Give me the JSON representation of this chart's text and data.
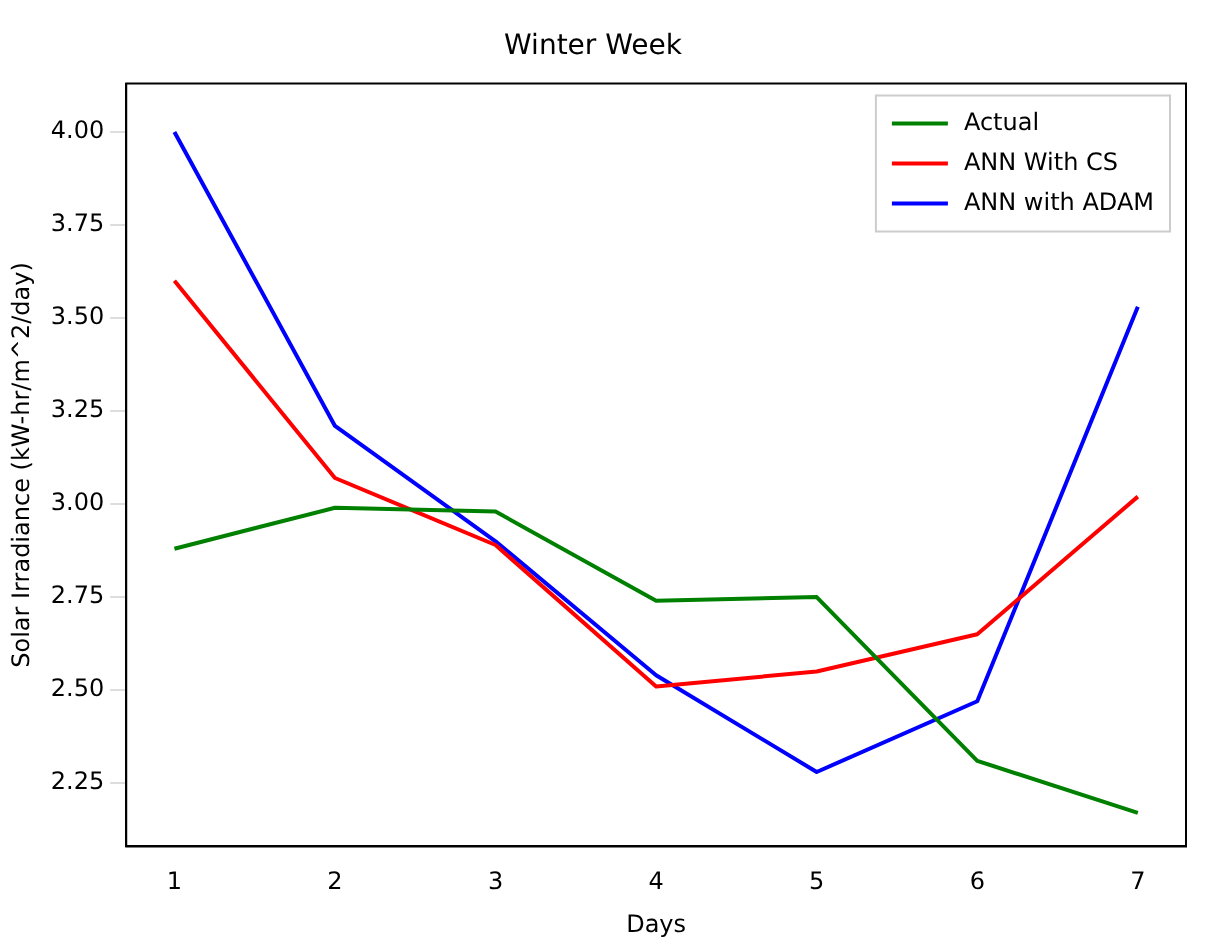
{
  "chart_data": {
    "type": "line",
    "title": "Winter Week",
    "xlabel": "Days",
    "ylabel": "Solar Irradiance (kW-hr/m^2/day)",
    "x": [
      1,
      2,
      3,
      4,
      5,
      6,
      7
    ],
    "series": [
      {
        "name": "Actual",
        "color": "#008000",
        "values": [
          2.88,
          2.99,
          2.98,
          2.74,
          2.75,
          2.31,
          2.17
        ]
      },
      {
        "name": "ANN With CS",
        "color": "#ff0000",
        "values": [
          3.6,
          3.07,
          2.89,
          2.51,
          2.55,
          2.65,
          3.02
        ]
      },
      {
        "name": "ANN with ADAM",
        "color": "#0000ff",
        "values": [
          4.0,
          3.21,
          2.9,
          2.54,
          2.28,
          2.47,
          3.53
        ]
      }
    ],
    "xlim": [
      0.7,
      7.3
    ],
    "xticks": [
      1,
      2,
      3,
      4,
      5,
      6,
      7
    ],
    "ylim": [
      2.08,
      4.13
    ],
    "yticks": [
      {
        "value": 2.25,
        "label": "2.25"
      },
      {
        "value": 2.5,
        "label": "2.50"
      },
      {
        "value": 2.75,
        "label": "2.75"
      },
      {
        "value": 3,
        "label": "3.00"
      },
      {
        "value": 3.25,
        "label": "3.25"
      },
      {
        "value": 3.5,
        "label": "3.50"
      },
      {
        "value": 3.75,
        "label": "3.75"
      },
      {
        "value": 4,
        "label": "4.00"
      }
    ],
    "grid": false,
    "legend": "top right",
    "marker": "none",
    "line_style": "solid"
  }
}
